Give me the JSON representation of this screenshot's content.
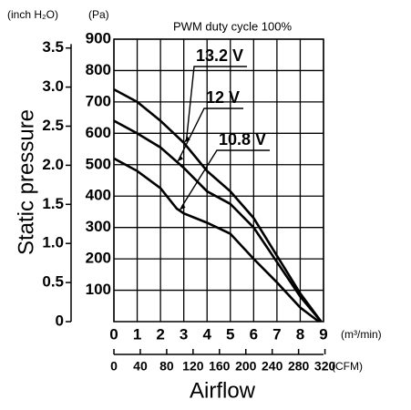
{
  "chart_data": {
    "type": "line",
    "title": "PWM duty cycle 100%",
    "y_label": "Static pressure",
    "x_label": "Airflow",
    "y_unit": "(Pa)",
    "y2_unit": "(inch H₂O)",
    "x_unit": "(m³/min)",
    "x2_unit": "(CFM)",
    "xlim": [
      0,
      9
    ],
    "xticks": [
      0,
      1,
      2,
      3,
      4,
      5,
      6,
      7,
      8,
      9
    ],
    "x2lim": [
      0,
      317.8
    ],
    "x2ticks": [
      0,
      40,
      80,
      120,
      160,
      200,
      240,
      280,
      320
    ],
    "ylim": [
      0,
      900
    ],
    "yticks": [
      100,
      200,
      300,
      400,
      500,
      600,
      700,
      800,
      900
    ],
    "y2lim": [
      0,
      3.613
    ],
    "y2ticks": [
      {
        "value": 0,
        "label": "0"
      },
      0.5,
      {
        "value": 1,
        "label": "1.0"
      },
      1.5,
      {
        "value": 2,
        "label": "2.0"
      },
      2.5,
      {
        "value": 3,
        "label": "3.0"
      },
      3.5
    ],
    "grid": true,
    "series": [
      {
        "name": "13.2 V",
        "color": "#000000",
        "x": [
          0,
          1,
          2,
          3,
          4,
          5,
          6,
          7,
          8,
          8.9
        ],
        "values": [
          740,
          700,
          640,
          570,
          480,
          415,
          330,
          210,
          90,
          0
        ]
      },
      {
        "name": "12 V",
        "color": "#000000",
        "x": [
          0,
          1,
          2,
          3,
          4,
          5,
          6,
          7,
          8,
          8.9
        ],
        "values": [
          640,
          600,
          555,
          490,
          415,
          375,
          300,
          190,
          80,
          0
        ]
      },
      {
        "name": "10.8 V",
        "color": "#000000",
        "x": [
          0,
          1,
          2,
          2.7,
          3,
          4,
          5,
          6,
          7,
          8,
          8.8
        ],
        "values": [
          520,
          480,
          425,
          360,
          345,
          315,
          280,
          200,
          125,
          45,
          0
        ]
      }
    ]
  }
}
